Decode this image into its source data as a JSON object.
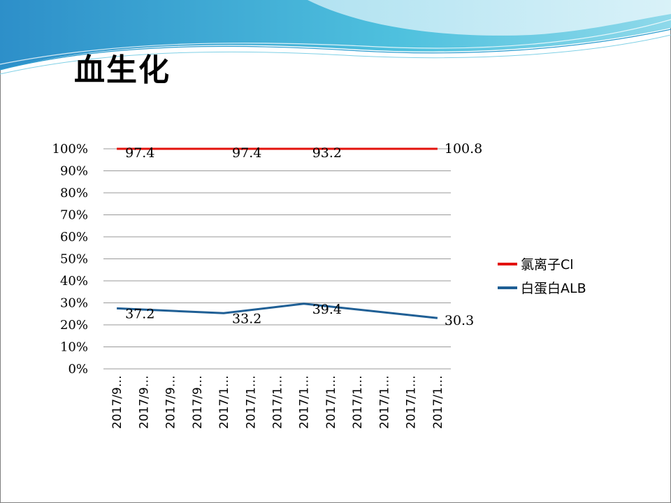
{
  "slide": {
    "title": "血生化"
  },
  "colors": {
    "chloride": "#e3120b",
    "albumin": "#1f5f95",
    "grid": "#9a9a9a"
  },
  "chart_data": {
    "type": "line",
    "title": "",
    "xlabel": "",
    "ylabel": "",
    "ylim": [
      0,
      100
    ],
    "y_ticks": [
      "0%",
      "10%",
      "20%",
      "30%",
      "40%",
      "50%",
      "60%",
      "70%",
      "80%",
      "90%",
      "100%"
    ],
    "categories": [
      "2017/9…",
      "2017/9…",
      "2017/9…",
      "2017/9…",
      "2017/1…",
      "2017/1…",
      "2017/1…",
      "2017/1…",
      "2017/1…",
      "2017/1…",
      "2017/1…",
      "2017/1…",
      "2017/1…"
    ],
    "grid": true,
    "legend": "right",
    "series": [
      {
        "name": "氯离子Cl",
        "color": "#e3120b",
        "x_index": [
          0,
          4,
          7,
          12
        ],
        "y_pct": [
          100,
          100,
          100,
          100
        ],
        "labels": [
          "97.4",
          "97.4",
          "93.2",
          "100.8"
        ]
      },
      {
        "name": "白蛋白ALB",
        "color": "#1f5f95",
        "x_index": [
          0,
          4,
          7,
          12
        ],
        "y_pct": [
          27.5,
          25.3,
          29.6,
          23.1
        ],
        "labels": [
          "37.2",
          "33.2",
          "39.4",
          "30.3"
        ]
      }
    ]
  }
}
